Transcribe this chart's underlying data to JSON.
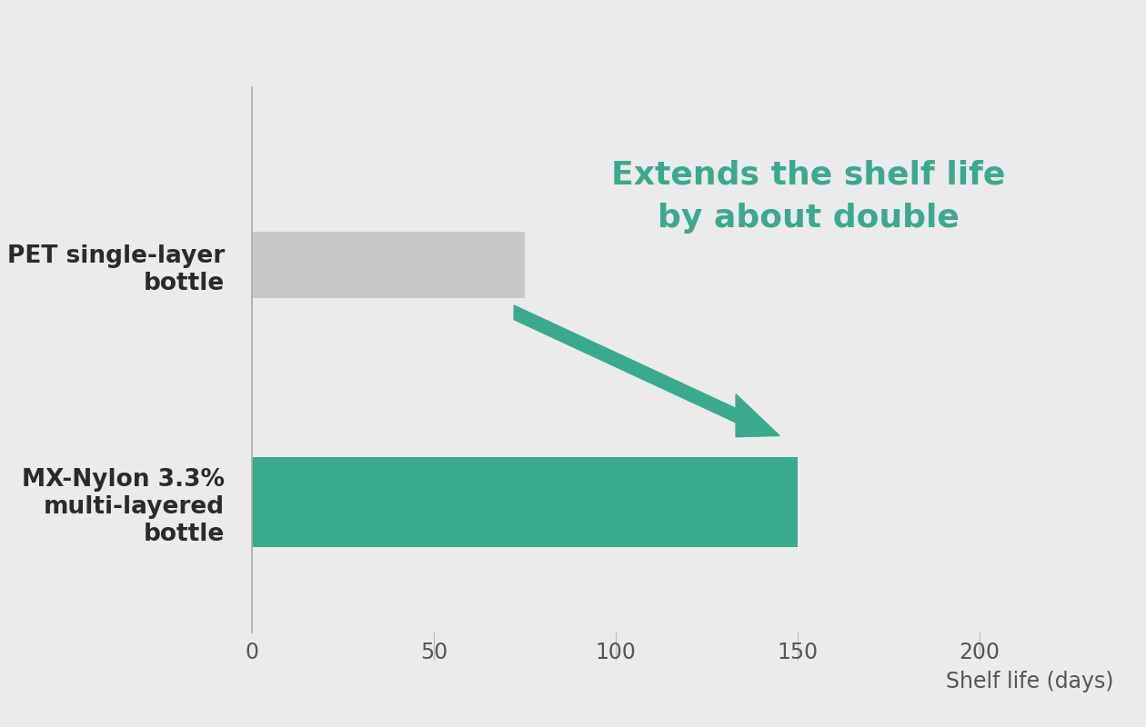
{
  "categories": [
    "MX-Nylon 3.3%\nmulti-layered\nbottle",
    "PET single-layer\nbottle"
  ],
  "values": [
    150,
    75
  ],
  "bar_colors": [
    "#3aaa8c",
    "#c8c8c8"
  ],
  "background_color": "#ebebeb",
  "xlabel": "Shelf life (days)",
  "xlim": [
    0,
    230
  ],
  "xticks": [
    0,
    50,
    100,
    150,
    200
  ],
  "annotation_text": "Extends the shelf life\nby about double",
  "annotation_color": "#3aaa8c",
  "annotation_fontsize": 26,
  "arrow_color": "#3aaa8c",
  "pet_bar_height": 0.28,
  "mx_bar_height": 0.38,
  "tick_fontsize": 17,
  "xlabel_fontsize": 17,
  "label_fontsize": 19
}
